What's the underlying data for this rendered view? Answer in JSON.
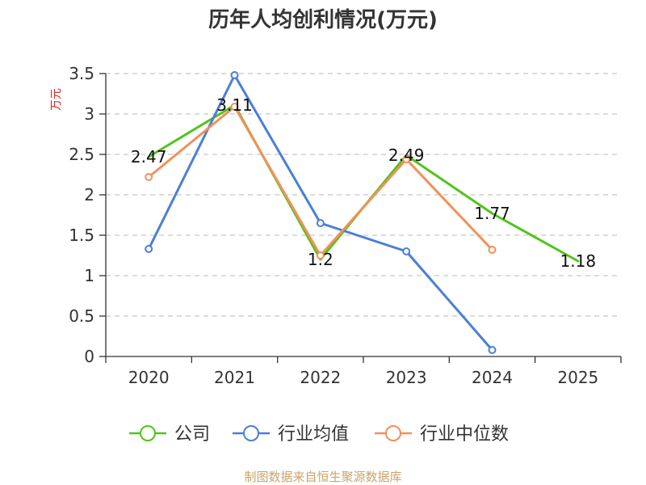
{
  "chart_data": {
    "type": "line",
    "title": "历年人均创利情况(万元)",
    "ylabel": "万元",
    "xlabel": "",
    "categories": [
      "2020",
      "2021",
      "2022",
      "2023",
      "2024",
      "2025"
    ],
    "ylim": [
      0,
      3.5
    ],
    "yticks": [
      "0",
      "0.5",
      "1",
      "1.5",
      "2",
      "2.5",
      "3",
      "3.5"
    ],
    "grid": true,
    "legend_position": "bottom",
    "series": [
      {
        "name": "公司",
        "color": "#52c41a",
        "values": [
          2.47,
          3.11,
          1.2,
          2.49,
          1.77,
          1.18
        ],
        "labels": [
          "2.47",
          "3.11",
          "1.2",
          "2.49",
          "1.77",
          "1.18"
        ],
        "markers": false
      },
      {
        "name": "行业均值",
        "color": "#4a7fd8",
        "values": [
          1.33,
          3.48,
          1.65,
          1.3,
          0.08,
          null
        ],
        "markers": true
      },
      {
        "name": "行业中位数",
        "color": "#f0915a",
        "values": [
          2.22,
          3.09,
          1.25,
          2.44,
          1.32,
          null
        ],
        "markers": true
      }
    ],
    "source": "制图数据来自恒生聚源数据库"
  }
}
